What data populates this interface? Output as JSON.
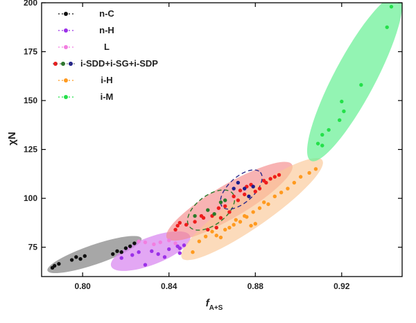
{
  "chart_data": {
    "type": "scatter",
    "xlabel": "f",
    "xlabel_sub": "A+S",
    "ylabel": "χN",
    "xlim": [
      0.781,
      0.948
    ],
    "ylim": [
      60,
      200
    ],
    "xticks": [
      "0.80",
      "0.84",
      "0.88",
      "0.92"
    ],
    "xtick_values": [
      0.8,
      0.84,
      0.88,
      0.92
    ],
    "yticks": [
      "75",
      "100",
      "125",
      "150",
      "175",
      "200"
    ],
    "ytick_values": [
      75,
      100,
      125,
      150,
      175,
      200
    ],
    "grid": false,
    "legend_position": "top-left",
    "legend": [
      {
        "label": "n-C",
        "colors": [
          "#111111"
        ]
      },
      {
        "label": "n-H",
        "colors": [
          "#9b30e8"
        ]
      },
      {
        "label": "L",
        "colors": [
          "#f27ee0"
        ]
      },
      {
        "label": "i-SDD+i-SG+i-SDP",
        "colors": [
          "#ee1c1c",
          "#2a7a2a",
          "#1e1e8c"
        ]
      },
      {
        "label": "i-H",
        "colors": [
          "#ff9a1f"
        ]
      },
      {
        "label": "i-M",
        "colors": [
          "#24e04a"
        ]
      }
    ],
    "regions": [
      {
        "name": "n-C",
        "fill": "#8a8a8a",
        "opacity": 0.75,
        "from": [
          0.785,
          63.5
        ],
        "to": [
          0.826,
          79
        ],
        "width": 5.0
      },
      {
        "name": "n-H",
        "fill": "#d98af0",
        "opacity": 0.75,
        "from": [
          0.815,
          66
        ],
        "to": [
          0.848,
          80
        ],
        "width": 7.0
      },
      {
        "name": "i-SDD+i-SG+i-SDP",
        "fill": "#f58a8a",
        "opacity": 0.65,
        "from": [
          0.841,
          81
        ],
        "to": [
          0.895,
          116
        ],
        "width": 8.5
      },
      {
        "name": "i-H",
        "fill": "#fbc896",
        "opacity": 0.65,
        "from": [
          0.848,
          71
        ],
        "to": [
          0.909,
          118
        ],
        "width": 9.0
      },
      {
        "name": "i-M",
        "fill": "#6ff09a",
        "opacity": 0.75,
        "from": [
          0.907,
          122
        ],
        "to": [
          0.945,
          201
        ],
        "width": 10.5
      }
    ],
    "dashed_ellipses": [
      {
        "color": "#2a7a2a",
        "from": [
          0.851,
          87
        ],
        "to": [
          0.868,
          101
        ],
        "width": 7.5
      },
      {
        "color": "#2a2a8c",
        "from": [
          0.866,
          97
        ],
        "to": [
          0.881,
          112
        ],
        "width": 6.5
      }
    ],
    "series": [
      {
        "name": "n-C",
        "color": "#111111",
        "points": [
          [
            0.786,
            64.5
          ],
          [
            0.787,
            65.5
          ],
          [
            0.789,
            66.5
          ],
          [
            0.795,
            68.5
          ],
          [
            0.797,
            70
          ],
          [
            0.799,
            69
          ],
          [
            0.801,
            70.5
          ],
          [
            0.814,
            71.5
          ],
          [
            0.816,
            73
          ],
          [
            0.818,
            72.5
          ],
          [
            0.82,
            74.5
          ],
          [
            0.822,
            75.5
          ],
          [
            0.824,
            77
          ]
        ]
      },
      {
        "name": "n-H",
        "color": "#9b30e8",
        "points": [
          [
            0.818,
            69.5
          ],
          [
            0.823,
            71
          ],
          [
            0.826,
            72.5
          ],
          [
            0.829,
            66
          ],
          [
            0.832,
            73
          ],
          [
            0.835,
            71.5
          ],
          [
            0.838,
            70
          ],
          [
            0.84,
            74
          ],
          [
            0.844,
            75.5
          ],
          [
            0.845,
            72
          ],
          [
            0.845,
            74.5
          ],
          [
            0.847,
            76
          ]
        ]
      },
      {
        "name": "L",
        "color": "#f27ee0",
        "points": [
          [
            0.826,
            78
          ],
          [
            0.829,
            77.5
          ],
          [
            0.833,
            76.5
          ],
          [
            0.836,
            77.5
          ],
          [
            0.84,
            78.5
          ],
          [
            0.843,
            77
          ]
        ]
      },
      {
        "name": "i-SDD",
        "color": "#ee1c1c",
        "points": [
          [
            0.843,
            84
          ],
          [
            0.844,
            86
          ],
          [
            0.845,
            87.5
          ],
          [
            0.848,
            86.5
          ],
          [
            0.852,
            88
          ],
          [
            0.855,
            91
          ],
          [
            0.856,
            90
          ],
          [
            0.858,
            84
          ],
          [
            0.86,
            91
          ],
          [
            0.862,
            85
          ],
          [
            0.863,
            95
          ],
          [
            0.864,
            90
          ],
          [
            0.866,
            96
          ],
          [
            0.868,
            93
          ],
          [
            0.87,
            101
          ],
          [
            0.872,
            99
          ],
          [
            0.873,
            104
          ],
          [
            0.875,
            102
          ],
          [
            0.876,
            106
          ],
          [
            0.878,
            107
          ],
          [
            0.88,
            103.5
          ],
          [
            0.882,
            105
          ],
          [
            0.884,
            109
          ],
          [
            0.885,
            108
          ],
          [
            0.887,
            110
          ],
          [
            0.889,
            111
          ],
          [
            0.891,
            112
          ]
        ]
      },
      {
        "name": "i-SG",
        "color": "#2a7a2a",
        "points": [
          [
            0.852,
            91
          ],
          [
            0.858,
            94
          ],
          [
            0.861,
            92
          ],
          [
            0.864,
            98
          ],
          [
            0.866,
            99
          ]
        ]
      },
      {
        "name": "i-SDP",
        "color": "#1e1e8c",
        "points": [
          [
            0.87,
            105
          ],
          [
            0.872,
            108
          ],
          [
            0.875,
            105
          ],
          [
            0.877,
            101
          ],
          [
            0.879,
            106
          ]
        ]
      },
      {
        "name": "i-H",
        "color": "#ff9a1f",
        "points": [
          [
            0.851,
            72.5
          ],
          [
            0.854,
            78
          ],
          [
            0.857,
            80.5
          ],
          [
            0.86,
            83
          ],
          [
            0.862,
            81
          ],
          [
            0.864,
            80
          ],
          [
            0.866,
            84
          ],
          [
            0.868,
            85
          ],
          [
            0.87,
            86.5
          ],
          [
            0.871,
            89
          ],
          [
            0.873,
            88
          ],
          [
            0.875,
            91
          ],
          [
            0.876,
            90.5
          ],
          [
            0.878,
            86
          ],
          [
            0.879,
            93
          ],
          [
            0.88,
            87
          ],
          [
            0.882,
            95
          ],
          [
            0.884,
            98
          ],
          [
            0.886,
            97
          ],
          [
            0.889,
            101
          ],
          [
            0.892,
            103
          ],
          [
            0.895,
            105
          ],
          [
            0.898,
            108
          ],
          [
            0.901,
            111
          ],
          [
            0.905,
            113
          ],
          [
            0.908,
            115
          ]
        ]
      },
      {
        "name": "i-M",
        "color": "#24e04a",
        "points": [
          [
            0.909,
            128
          ],
          [
            0.911,
            127
          ],
          [
            0.911,
            132.5
          ],
          [
            0.914,
            135
          ],
          [
            0.919,
            140
          ],
          [
            0.921,
            144.5
          ],
          [
            0.92,
            149.5
          ],
          [
            0.929,
            158
          ],
          [
            0.941,
            187.5
          ],
          [
            0.943,
            198
          ]
        ]
      }
    ]
  }
}
